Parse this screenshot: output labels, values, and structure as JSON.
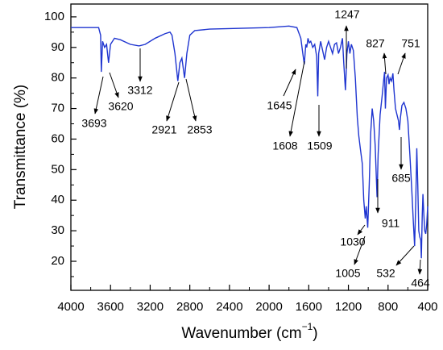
{
  "chart_data": {
    "type": "line",
    "y_label": "Transmittance (%)",
    "x_label": {
      "text": "Wavenumber (cm",
      "sup": "−1",
      "end": ")"
    },
    "xlim": [
      4000,
      400
    ],
    "ylim": [
      10.5,
      104.2
    ],
    "xticks": [
      4000,
      3600,
      3200,
      2800,
      2400,
      2000,
      1600,
      1200,
      800,
      400
    ],
    "xminorticks": [
      3800,
      3400,
      3000,
      2600,
      2200,
      1800,
      1400,
      1000,
      600
    ],
    "yticks": [
      20,
      30,
      40,
      50,
      60,
      70,
      80,
      90,
      100
    ],
    "yminorticks": [
      15,
      25,
      35,
      45,
      55,
      65,
      75,
      85,
      95
    ],
    "x": [
      4000,
      3720,
      3700,
      3693,
      3680,
      3660,
      3640,
      3620,
      3600,
      3560,
      3500,
      3400,
      3312,
      3250,
      3150,
      3050,
      3000,
      2980,
      2950,
      2921,
      2900,
      2880,
      2853,
      2830,
      2800,
      2750,
      2600,
      2000,
      1800,
      1720,
      1680,
      1660,
      1645,
      1630,
      1620,
      1608,
      1595,
      1580,
      1560,
      1540,
      1520,
      1509,
      1500,
      1480,
      1460,
      1440,
      1420,
      1400,
      1380,
      1360,
      1340,
      1320,
      1300,
      1280,
      1260,
      1247,
      1230,
      1215,
      1200,
      1185,
      1170,
      1150,
      1130,
      1110,
      1095,
      1080,
      1060,
      1045,
      1030,
      1020,
      1005,
      990,
      975,
      960,
      945,
      930,
      911,
      900,
      880,
      860,
      845,
      835,
      827,
      815,
      800,
      790,
      780,
      765,
      751,
      740,
      725,
      710,
      695,
      685,
      675,
      660,
      640,
      620,
      600,
      580,
      560,
      545,
      532,
      520,
      510,
      500,
      490,
      480,
      470,
      464,
      455,
      448,
      440,
      430,
      420,
      410,
      400
    ],
    "series": [
      {
        "color": "#1f35d0",
        "values": [
          96.5,
          96.5,
          94,
          82,
          92,
          90,
          91,
          85,
          91,
          93,
          92.5,
          91,
          90.5,
          91,
          93,
          94.5,
          95,
          94,
          88,
          79,
          85,
          86.5,
          80,
          88,
          94,
          95.5,
          96,
          96.5,
          97,
          96.5,
          93,
          88,
          84.5,
          91,
          90,
          93,
          91.5,
          92,
          90,
          91,
          87,
          74,
          88,
          92,
          89,
          86,
          90,
          92,
          90,
          88,
          91,
          91.5,
          88,
          90,
          93,
          85,
          76,
          88,
          92,
          88,
          91,
          89,
          80,
          67,
          61,
          57,
          52,
          40,
          34,
          38,
          31,
          45,
          62,
          70,
          66,
          58,
          41,
          55,
          68,
          74,
          79,
          82,
          70,
          80,
          81,
          78,
          80,
          79,
          81.5,
          76,
          70,
          68,
          66,
          63,
          67,
          71,
          72,
          70,
          66,
          55,
          43,
          33,
          25,
          40,
          57,
          45,
          30,
          28,
          27,
          21,
          35,
          42,
          36,
          30,
          29,
          32,
          38
        ]
      }
    ],
    "annotations": [
      3693,
      3620,
      3312,
      2921,
      2853,
      1645,
      1608,
      1509,
      1247,
      827,
      751,
      685,
      911,
      1030,
      1005,
      532,
      464
    ]
  }
}
